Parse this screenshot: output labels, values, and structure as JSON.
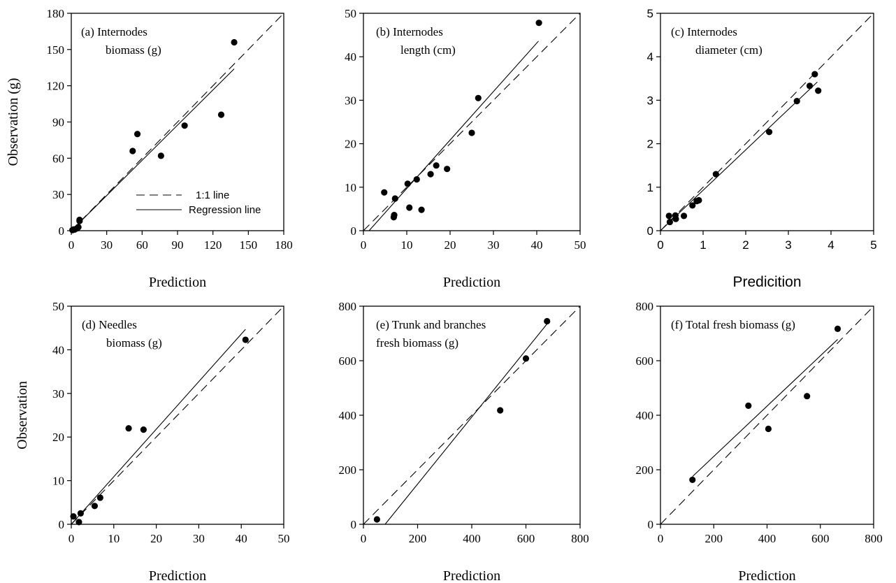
{
  "chart_data": [
    {
      "id": "a",
      "type": "scatter",
      "title_lines": [
        "(a) Internodes",
        "biomass (g)"
      ],
      "xlabel": "Prediction",
      "ylabel": "Observation  (g)",
      "xlim": [
        0,
        180
      ],
      "ylim": [
        0,
        180
      ],
      "xticks": [
        0,
        30,
        60,
        90,
        120,
        150,
        180
      ],
      "yticks": [
        0,
        30,
        60,
        90,
        120,
        150,
        180
      ],
      "points": [
        [
          1,
          0.5
        ],
        [
          2,
          1
        ],
        [
          3,
          1
        ],
        [
          5,
          2
        ],
        [
          6,
          3
        ],
        [
          7,
          8
        ],
        [
          7,
          9
        ],
        [
          52,
          66
        ],
        [
          56,
          80
        ],
        [
          76,
          62
        ],
        [
          96,
          87
        ],
        [
          127,
          96
        ],
        [
          138,
          156
        ]
      ],
      "one_to_one": [
        [
          0,
          0
        ],
        [
          180,
          180
        ]
      ],
      "regression": [
        [
          0,
          0
        ],
        [
          138,
          134
        ]
      ],
      "legend": {
        "dashed_label": "1:1 line",
        "solid_label": "Regression line",
        "position": "bottom-right"
      }
    },
    {
      "id": "b",
      "type": "scatter",
      "title_lines": [
        "(b) Internodes",
        "length (cm)"
      ],
      "xlabel": "Prediction",
      "ylabel": "",
      "xlim": [
        0,
        50
      ],
      "ylim": [
        0,
        50
      ],
      "xticks": [
        0,
        10,
        20,
        30,
        40,
        50
      ],
      "yticks": [
        0,
        10,
        20,
        30,
        40,
        50
      ],
      "points": [
        [
          4.8,
          8.8
        ],
        [
          7,
          3.1
        ],
        [
          7.1,
          3.6
        ],
        [
          7.3,
          7.4
        ],
        [
          10.2,
          10.8
        ],
        [
          10.6,
          5.3
        ],
        [
          12.3,
          11.8
        ],
        [
          13.4,
          4.8
        ],
        [
          15.5,
          13
        ],
        [
          16.8,
          15
        ],
        [
          19.3,
          14.2
        ],
        [
          25,
          22.5
        ],
        [
          26.5,
          30.5
        ],
        [
          40.5,
          47.8
        ]
      ],
      "one_to_one": [
        [
          0,
          0
        ],
        [
          50,
          50
        ]
      ],
      "regression": [
        [
          1.3,
          0
        ],
        [
          40.4,
          43.6
        ]
      ]
    },
    {
      "id": "c",
      "type": "scatter",
      "title_lines": [
        "(c) Internodes",
        "diameter (cm)"
      ],
      "xlabel": "Predicition",
      "ylabel": "",
      "xlim": [
        0,
        5
      ],
      "ylim": [
        0,
        5
      ],
      "xticks": [
        0,
        1,
        2,
        3,
        4,
        5
      ],
      "yticks": [
        0,
        1,
        2,
        3,
        4,
        5
      ],
      "points": [
        [
          0.2,
          0.34
        ],
        [
          0.22,
          0.2
        ],
        [
          0.35,
          0.35
        ],
        [
          0.36,
          0.27
        ],
        [
          0.55,
          0.34
        ],
        [
          0.75,
          0.58
        ],
        [
          0.85,
          0.68
        ],
        [
          0.9,
          0.7
        ],
        [
          1.3,
          1.3
        ],
        [
          2.55,
          2.27
        ],
        [
          3.2,
          2.98
        ],
        [
          3.5,
          3.33
        ],
        [
          3.62,
          3.6
        ],
        [
          3.7,
          3.22
        ]
      ],
      "one_to_one": [
        [
          0,
          0
        ],
        [
          5,
          5
        ]
      ],
      "regression": [
        [
          0,
          0
        ],
        [
          3.68,
          3.42
        ]
      ]
    },
    {
      "id": "d",
      "type": "scatter",
      "title_lines": [
        "(d) Needles",
        "biomass (g)"
      ],
      "xlabel": "Prediction",
      "ylabel": "Observation",
      "xlim": [
        0,
        50
      ],
      "ylim": [
        0,
        50
      ],
      "xticks": [
        0,
        10,
        20,
        30,
        40,
        50
      ],
      "yticks": [
        0,
        10,
        20,
        30,
        40,
        50
      ],
      "points": [
        [
          0.5,
          1.8
        ],
        [
          1.8,
          0.5
        ],
        [
          2.2,
          2.5
        ],
        [
          5.5,
          4.2
        ],
        [
          6.8,
          6.1
        ],
        [
          13.5,
          22
        ],
        [
          17,
          21.7
        ],
        [
          41,
          42.3
        ]
      ],
      "one_to_one": [
        [
          0,
          0
        ],
        [
          50,
          50
        ]
      ],
      "regression": [
        [
          0,
          0
        ],
        [
          41,
          44.7
        ]
      ]
    },
    {
      "id": "e",
      "type": "scatter",
      "title_lines": [
        "(e) Trunk and branches",
        "fresh biomass (g)"
      ],
      "xlabel": "Prediction",
      "ylabel": "",
      "xlim": [
        0,
        800
      ],
      "ylim": [
        0,
        800
      ],
      "xticks": [
        0,
        200,
        400,
        600,
        800
      ],
      "yticks": [
        0,
        200,
        400,
        600,
        800
      ],
      "points": [
        [
          50,
          18
        ],
        [
          505,
          418
        ],
        [
          600,
          608
        ],
        [
          678,
          745
        ]
      ],
      "one_to_one": [
        [
          0,
          0
        ],
        [
          800,
          800
        ]
      ],
      "regression": [
        [
          80,
          0
        ],
        [
          678,
          735
        ]
      ]
    },
    {
      "id": "f",
      "type": "scatter",
      "title_lines": [
        "(f) Total fresh biomass (g)"
      ],
      "xlabel": "Prediction",
      "ylabel": "",
      "xlim": [
        0,
        800
      ],
      "ylim": [
        0,
        800
      ],
      "xticks": [
        0,
        200,
        400,
        600,
        800
      ],
      "yticks": [
        0,
        200,
        400,
        600,
        800
      ],
      "points": [
        [
          120,
          163
        ],
        [
          330,
          435
        ],
        [
          405,
          350
        ],
        [
          550,
          470
        ],
        [
          665,
          717
        ]
      ],
      "one_to_one": [
        [
          0,
          0
        ],
        [
          800,
          800
        ]
      ],
      "regression": [
        [
          120,
          175
        ],
        [
          665,
          678
        ]
      ]
    }
  ]
}
